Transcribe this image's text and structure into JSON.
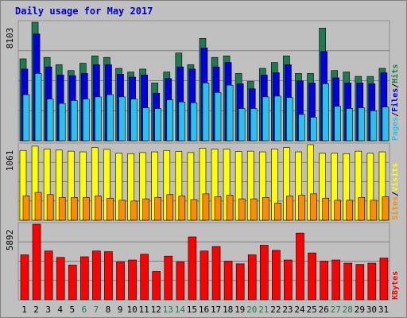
{
  "title": "Daily usage for May 2017",
  "colors": {
    "title": "#0000cc",
    "hits": "#1f7a50",
    "files": "#0000e6",
    "pages": "#27c3f0",
    "visits": "#ffff00",
    "sites": "#ff8c00",
    "kbytes": "#ff0000",
    "weekday_label": "#000000",
    "weekend_label": "#1f7a50",
    "separator": "#000000"
  },
  "chart_data": {
    "type": "bar",
    "days": [
      "1",
      "2",
      "3",
      "4",
      "5",
      "6",
      "7",
      "8",
      "9",
      "10",
      "11",
      "12",
      "13",
      "14",
      "15",
      "16",
      "17",
      "18",
      "19",
      "20",
      "21",
      "22",
      "23",
      "24",
      "25",
      "26",
      "27",
      "28",
      "29",
      "30",
      "31"
    ],
    "weekend_days": [
      "6",
      "7",
      "13",
      "14",
      "20",
      "21",
      "27",
      "28"
    ],
    "panels": [
      {
        "id": "hits-files-pages",
        "ymax_label": "8103",
        "ymax": 8103,
        "legend": [
          {
            "text": "Pages",
            "color_key": "pages"
          },
          {
            "text": "/",
            "color_key": "separator"
          },
          {
            "text": "Files",
            "color_key": "files"
          },
          {
            "text": "/",
            "color_key": "separator"
          },
          {
            "text": "Hits",
            "color_key": "hits"
          }
        ],
        "series": [
          {
            "name": "Hits",
            "color_key": "hits",
            "values": [
              5600,
              8103,
              5700,
              5200,
              4800,
              5300,
              5800,
              5700,
              4950,
              4700,
              4900,
              3950,
              4700,
              6000,
              5200,
              7000,
              5700,
              5800,
              4600,
              4050,
              4950,
              5350,
              5800,
              4600,
              4600,
              7700,
              4800,
              4700,
              4400,
              4400,
              4950
            ]
          },
          {
            "name": "Files",
            "color_key": "files",
            "values": [
              4900,
              7300,
              5050,
              4500,
              4450,
              4600,
              5200,
              5200,
              4550,
              4350,
              4500,
              3250,
              4250,
              5050,
              4900,
              6350,
              5050,
              5350,
              3900,
              3550,
              4500,
              4650,
              5200,
              4100,
              3950,
              6100,
              4300,
              3950,
              3950,
              3900,
              4650
            ]
          },
          {
            "name": "Pages",
            "color_key": "pages",
            "values": [
              3150,
              4600,
              2850,
              2550,
              2750,
              2850,
              3000,
              3150,
              3000,
              2850,
              2250,
              2200,
              2800,
              2650,
              2600,
              3950,
              3300,
              3800,
              2200,
              2200,
              3000,
              3050,
              2950,
              1800,
              1600,
              3900,
              2350,
              2200,
              2250,
              2050,
              2300
            ]
          }
        ]
      },
      {
        "id": "visits-sites",
        "ymax_label": "1061",
        "ymax": 1061,
        "legend": [
          {
            "text": "Sites",
            "color_key": "sites"
          },
          {
            "text": "/",
            "color_key": "separator"
          },
          {
            "text": "Visits",
            "color_key": "visits"
          }
        ],
        "series": [
          {
            "name": "Visits",
            "color_key": "visits",
            "values": [
              980,
              1040,
              1000,
              985,
              970,
              960,
              1020,
              995,
              940,
              935,
              950,
              960,
              980,
              965,
              950,
              1010,
              1000,
              1000,
              965,
              970,
              960,
              1000,
              1020,
              960,
              1061,
              940,
              940,
              935,
              970,
              940,
              960
            ]
          },
          {
            "name": "Sites",
            "color_key": "sites",
            "values": [
              340,
              390,
              360,
              320,
              320,
              320,
              340,
              310,
              280,
              270,
              300,
              320,
              360,
              340,
              290,
              370,
              330,
              350,
              300,
              300,
              320,
              240,
              340,
              350,
              370,
              310,
              280,
              280,
              320,
              280,
              330
            ]
          }
        ]
      },
      {
        "id": "kbytes",
        "ymax_label": "5892",
        "ymax": 5892,
        "legend": [
          {
            "text": "KBytes",
            "color_key": "kbytes"
          }
        ],
        "series": [
          {
            "name": "KBytes",
            "color_key": "kbytes",
            "values": [
              3500,
              5892,
              3800,
              3300,
              2700,
              3350,
              3800,
              3750,
              2950,
              3100,
              3550,
              2200,
              3400,
              2950,
              4900,
              3800,
              4150,
              3000,
              2800,
              3500,
              4250,
              3850,
              3100,
              5200,
              3650,
              3000,
              3100,
              2850,
              2750,
              2850,
              3250
            ]
          }
        ]
      }
    ]
  }
}
